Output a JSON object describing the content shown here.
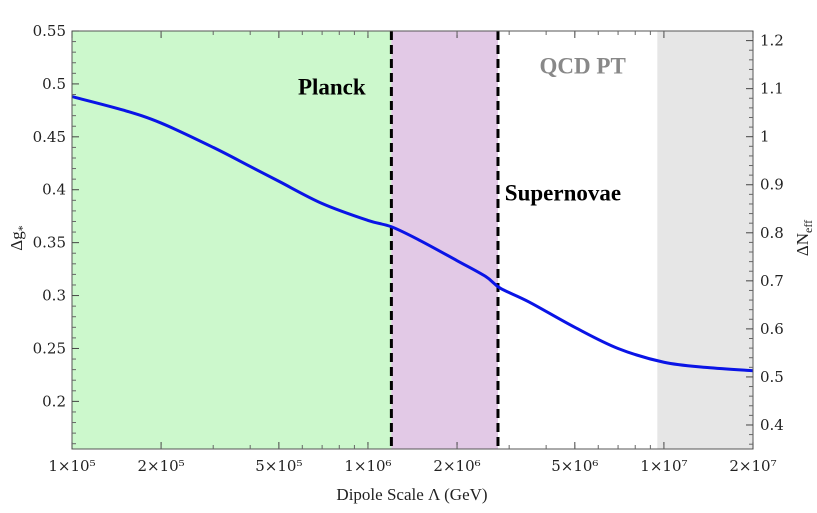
{
  "chart_data": {
    "type": "line",
    "title": "",
    "xlabel": "Dipole Scale Λ (GeV)",
    "ylabel": "Δg*",
    "ylabel_right": "ΔNeff",
    "x_scale": "log",
    "xlim": [
      100000,
      20000000
    ],
    "ylim": [
      0.155,
      0.55
    ],
    "ylim_right": [
      0.35,
      1.22
    ],
    "grid": false,
    "x_ticks": [
      {
        "value": 100000,
        "label": "1×10⁵"
      },
      {
        "value": 200000,
        "label": "2×10⁵"
      },
      {
        "value": 500000,
        "label": "5×10⁵"
      },
      {
        "value": 1000000,
        "label": "1×10⁶"
      },
      {
        "value": 2000000,
        "label": "2×10⁶"
      },
      {
        "value": 5000000,
        "label": "5×10⁶"
      },
      {
        "value": 10000000,
        "label": "1×10⁷"
      },
      {
        "value": 20000000,
        "label": "2×10⁷"
      }
    ],
    "y_ticks_left": [
      {
        "value": 0.2,
        "label": "0.2"
      },
      {
        "value": 0.25,
        "label": "0.25"
      },
      {
        "value": 0.3,
        "label": "0.3"
      },
      {
        "value": 0.35,
        "label": "0.35"
      },
      {
        "value": 0.4,
        "label": "0.4"
      },
      {
        "value": 0.45,
        "label": "0.45"
      },
      {
        "value": 0.5,
        "label": "0.5"
      },
      {
        "value": 0.55,
        "label": "0.55"
      }
    ],
    "y_ticks_right": [
      {
        "value": 0.4,
        "label": "0.4"
      },
      {
        "value": 0.5,
        "label": "0.5"
      },
      {
        "value": 0.6,
        "label": "0.6"
      },
      {
        "value": 0.7,
        "label": "0.7"
      },
      {
        "value": 0.8,
        "label": "0.8"
      },
      {
        "value": 0.9,
        "label": "0.9"
      },
      {
        "value": 1.0,
        "label": "1"
      },
      {
        "value": 1.1,
        "label": "1.1"
      },
      {
        "value": 1.2,
        "label": "1.2"
      }
    ],
    "series": [
      {
        "color": "#0a14e6",
        "x": [
          100000,
          150000,
          200000,
          300000,
          400000,
          500000,
          700000,
          1000000,
          1200000,
          1500000,
          2000000,
          2500000,
          2800000,
          3500000,
          5000000,
          7000000,
          10000000,
          14000000,
          20000000
        ],
        "y": [
          0.488,
          0.475,
          0.463,
          0.44,
          0.422,
          0.408,
          0.387,
          0.371,
          0.365,
          0.352,
          0.333,
          0.318,
          0.307,
          0.294,
          0.27,
          0.25,
          0.237,
          0.232,
          0.229
        ]
      }
    ],
    "regions": [
      {
        "name": "planck-excluded",
        "x0": 100000,
        "x1": 1200000,
        "color": "#ccf8cc"
      },
      {
        "name": "supernova-band",
        "x0": 1200000,
        "x1": 2750000,
        "color": "#e2c9e6"
      },
      {
        "name": "qcd-pt-band",
        "x0": 9500000,
        "x1": 20000000,
        "color": "#e6e6e6"
      }
    ],
    "vlines": [
      {
        "name": "planck-bound",
        "x": 1200000,
        "style": "dashed",
        "color": "#000000"
      },
      {
        "name": "supernova-bound",
        "x": 2750000,
        "style": "dashed",
        "color": "#000000"
      }
    ],
    "annotations": [
      {
        "name": "planck",
        "text": "Planck",
        "x": 580000,
        "y": 0.49,
        "color": "#000000"
      },
      {
        "name": "supernovae",
        "text": "Supernovae",
        "x": 2900000,
        "y": 0.39,
        "color": "#000000"
      },
      {
        "name": "qcd-pt",
        "text": "QCD PT",
        "x": 3800000,
        "y": 0.51,
        "color": "#888888"
      }
    ]
  }
}
